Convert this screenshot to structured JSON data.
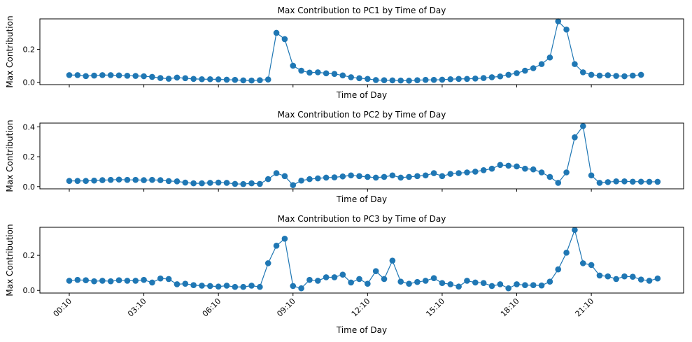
{
  "colors": {
    "series": "#1f77b4",
    "axes": "#000000",
    "background": "#ffffff"
  },
  "chart_data": [
    {
      "type": "line",
      "title": "Max Contribution to PC1 by Time of Day",
      "xlabel": "Time of Day",
      "ylabel": "Max Contribution",
      "ylim": [
        -0.015,
        0.385
      ],
      "yticks": [
        0.0,
        0.2
      ],
      "ytick_labels": [
        "0.0",
        "0.2"
      ],
      "x_interval_minutes": 20,
      "x_start": "00:10",
      "xticks": [
        "00:10",
        "03:10",
        "06:10",
        "09:10",
        "12:10",
        "15:10",
        "18:10",
        "21:10"
      ],
      "show_xtick_labels": false,
      "values": [
        0.043,
        0.043,
        0.037,
        0.04,
        0.043,
        0.043,
        0.041,
        0.039,
        0.038,
        0.036,
        0.032,
        0.025,
        0.021,
        0.028,
        0.024,
        0.02,
        0.018,
        0.018,
        0.017,
        0.015,
        0.014,
        0.011,
        0.01,
        0.012,
        0.016,
        0.3,
        0.262,
        0.1,
        0.07,
        0.058,
        0.06,
        0.054,
        0.05,
        0.041,
        0.03,
        0.024,
        0.02,
        0.013,
        0.012,
        0.011,
        0.01,
        0.009,
        0.012,
        0.014,
        0.014,
        0.015,
        0.018,
        0.02,
        0.02,
        0.022,
        0.025,
        0.03,
        0.035,
        0.045,
        0.055,
        0.07,
        0.085,
        0.11,
        0.15,
        0.37,
        0.32,
        0.11,
        0.06,
        0.045,
        0.04,
        0.042,
        0.038,
        0.036,
        0.04,
        0.045
      ]
    },
    {
      "type": "line",
      "title": "Max Contribution to PC2 by Time of Day",
      "xlabel": "Time of Day",
      "ylabel": "Max Contribution",
      "ylim": [
        -0.015,
        0.425
      ],
      "yticks": [
        0.0,
        0.2,
        0.4
      ],
      "ytick_labels": [
        "0.0",
        "0.2",
        "0.4"
      ],
      "x_interval_minutes": 20,
      "x_start": "00:10",
      "xticks": [
        "00:10",
        "03:10",
        "06:10",
        "09:10",
        "12:10",
        "15:10",
        "18:10",
        "21:10"
      ],
      "show_xtick_labels": false,
      "values": [
        0.038,
        0.038,
        0.038,
        0.04,
        0.043,
        0.045,
        0.047,
        0.045,
        0.045,
        0.043,
        0.045,
        0.043,
        0.037,
        0.035,
        0.027,
        0.022,
        0.022,
        0.025,
        0.027,
        0.025,
        0.018,
        0.017,
        0.022,
        0.018,
        0.05,
        0.09,
        0.07,
        0.01,
        0.04,
        0.05,
        0.055,
        0.06,
        0.062,
        0.068,
        0.075,
        0.07,
        0.065,
        0.06,
        0.065,
        0.075,
        0.06,
        0.065,
        0.07,
        0.075,
        0.09,
        0.07,
        0.085,
        0.09,
        0.095,
        0.1,
        0.11,
        0.12,
        0.145,
        0.14,
        0.135,
        0.12,
        0.115,
        0.095,
        0.065,
        0.025,
        0.095,
        0.33,
        0.405,
        0.075,
        0.025,
        0.03,
        0.035,
        0.035,
        0.033,
        0.033,
        0.032,
        0.032
      ]
    },
    {
      "type": "line",
      "title": "Max Contribution to PC3 by Time of Day",
      "xlabel": "Time of Day",
      "ylabel": "Max Contribution",
      "ylim": [
        -0.015,
        0.36
      ],
      "yticks": [
        0.0,
        0.2
      ],
      "ytick_labels": [
        "0.0",
        "0.2"
      ],
      "x_interval_minutes": 20,
      "x_start": "00:10",
      "xticks": [
        "00:10",
        "03:10",
        "06:10",
        "09:10",
        "12:10",
        "15:10",
        "18:10",
        "21:10"
      ],
      "show_xtick_labels": true,
      "values": [
        0.055,
        0.06,
        0.058,
        0.052,
        0.055,
        0.052,
        0.058,
        0.055,
        0.055,
        0.06,
        0.045,
        0.068,
        0.065,
        0.035,
        0.038,
        0.03,
        0.027,
        0.025,
        0.022,
        0.027,
        0.02,
        0.02,
        0.027,
        0.02,
        0.155,
        0.255,
        0.295,
        0.025,
        0.012,
        0.06,
        0.055,
        0.075,
        0.075,
        0.09,
        0.045,
        0.065,
        0.038,
        0.11,
        0.065,
        0.17,
        0.05,
        0.038,
        0.048,
        0.055,
        0.07,
        0.042,
        0.035,
        0.022,
        0.055,
        0.045,
        0.042,
        0.025,
        0.035,
        0.012,
        0.035,
        0.03,
        0.03,
        0.028,
        0.05,
        0.12,
        0.215,
        0.345,
        0.155,
        0.145,
        0.085,
        0.08,
        0.065,
        0.08,
        0.078,
        0.062,
        0.055,
        0.068
      ]
    }
  ]
}
